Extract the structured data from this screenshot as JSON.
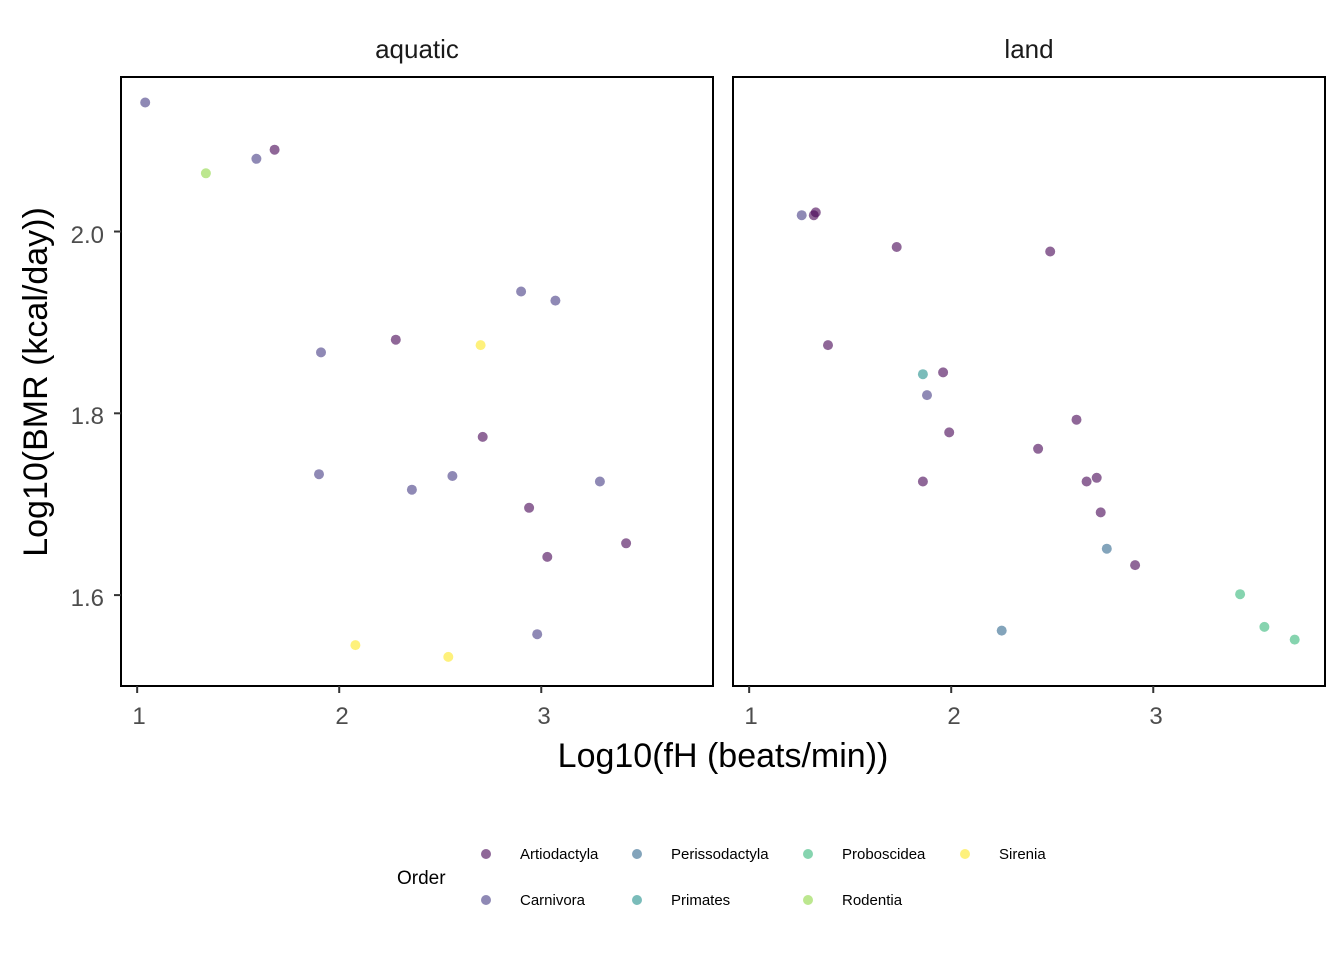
{
  "chart_data": {
    "type": "scatter",
    "xlabel": "Log10(fH (beats/min))",
    "ylabel": "Log10(BMR (kcal/day))",
    "x_ticks": [
      1,
      2,
      3
    ],
    "y_ticks": [
      1.6,
      1.8,
      2.0
    ],
    "y_tick_labels": [
      "1.6",
      "1.8",
      "2.0"
    ],
    "xlim": [
      0.92,
      3.85
    ],
    "ylim": [
      1.5,
      2.17
    ],
    "legend": {
      "title": "Order",
      "position": "bottom",
      "entries": [
        {
          "name": "Artiodactyla",
          "color": "#440154"
        },
        {
          "name": "Carnivora",
          "color": "#443A83"
        },
        {
          "name": "Perissodactyla",
          "color": "#31688E"
        },
        {
          "name": "Primates",
          "color": "#21908C"
        },
        {
          "name": "Proboscidea",
          "color": "#35B779"
        },
        {
          "name": "Rodentia",
          "color": "#8FD744"
        },
        {
          "name": "Sirenia",
          "color": "#FDE725"
        }
      ]
    },
    "panels": [
      {
        "title": "aquatic",
        "points": [
          {
            "x": 1.04,
            "y": 2.142,
            "order": "Carnivora"
          },
          {
            "x": 1.34,
            "y": 2.064,
            "order": "Rodentia"
          },
          {
            "x": 1.59,
            "y": 2.08,
            "order": "Carnivora"
          },
          {
            "x": 1.68,
            "y": 2.09,
            "order": "Artiodactyla"
          },
          {
            "x": 1.91,
            "y": 1.867,
            "order": "Carnivora"
          },
          {
            "x": 2.28,
            "y": 1.881,
            "order": "Artiodactyla"
          },
          {
            "x": 2.7,
            "y": 1.875,
            "order": "Sirenia"
          },
          {
            "x": 2.9,
            "y": 1.934,
            "order": "Carnivora"
          },
          {
            "x": 3.07,
            "y": 1.924,
            "order": "Carnivora"
          },
          {
            "x": 2.71,
            "y": 1.774,
            "order": "Artiodactyla"
          },
          {
            "x": 1.9,
            "y": 1.733,
            "order": "Carnivora"
          },
          {
            "x": 2.36,
            "y": 1.716,
            "order": "Carnivora"
          },
          {
            "x": 2.56,
            "y": 1.731,
            "order": "Carnivora"
          },
          {
            "x": 3.29,
            "y": 1.725,
            "order": "Carnivora"
          },
          {
            "x": 2.94,
            "y": 1.696,
            "order": "Artiodactyla"
          },
          {
            "x": 3.03,
            "y": 1.642,
            "order": "Artiodactyla"
          },
          {
            "x": 3.42,
            "y": 1.657,
            "order": "Artiodactyla"
          },
          {
            "x": 2.98,
            "y": 1.557,
            "order": "Carnivora"
          },
          {
            "x": 2.08,
            "y": 1.545,
            "order": "Sirenia"
          },
          {
            "x": 2.54,
            "y": 1.532,
            "order": "Sirenia"
          }
        ]
      },
      {
        "title": "land",
        "points": [
          {
            "x": 1.26,
            "y": 2.018,
            "order": "Carnivora"
          },
          {
            "x": 1.32,
            "y": 2.018,
            "order": "Artiodactyla"
          },
          {
            "x": 1.33,
            "y": 2.021,
            "order": "Artiodactyla"
          },
          {
            "x": 1.73,
            "y": 1.983,
            "order": "Artiodactyla"
          },
          {
            "x": 2.49,
            "y": 1.978,
            "order": "Artiodactyla"
          },
          {
            "x": 1.39,
            "y": 1.875,
            "order": "Artiodactyla"
          },
          {
            "x": 1.86,
            "y": 1.843,
            "order": "Primates"
          },
          {
            "x": 1.96,
            "y": 1.845,
            "order": "Artiodactyla"
          },
          {
            "x": 1.88,
            "y": 1.82,
            "order": "Carnivora"
          },
          {
            "x": 1.99,
            "y": 1.779,
            "order": "Artiodactyla"
          },
          {
            "x": 2.62,
            "y": 1.793,
            "order": "Artiodactyla"
          },
          {
            "x": 2.43,
            "y": 1.761,
            "order": "Artiodactyla"
          },
          {
            "x": 1.86,
            "y": 1.725,
            "order": "Artiodactyla"
          },
          {
            "x": 2.67,
            "y": 1.725,
            "order": "Artiodactyla"
          },
          {
            "x": 2.72,
            "y": 1.729,
            "order": "Artiodactyla"
          },
          {
            "x": 2.74,
            "y": 1.691,
            "order": "Artiodactyla"
          },
          {
            "x": 2.77,
            "y": 1.651,
            "order": "Perissodactyla"
          },
          {
            "x": 2.91,
            "y": 1.633,
            "order": "Artiodactyla"
          },
          {
            "x": 3.43,
            "y": 1.601,
            "order": "Proboscidea"
          },
          {
            "x": 3.55,
            "y": 1.565,
            "order": "Proboscidea"
          },
          {
            "x": 3.7,
            "y": 1.551,
            "order": "Proboscidea"
          },
          {
            "x": 2.25,
            "y": 1.561,
            "order": "Perissodactyla"
          }
        ]
      }
    ]
  }
}
